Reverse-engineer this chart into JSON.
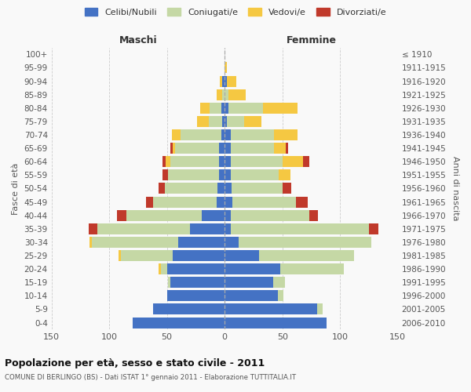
{
  "age_groups": [
    "0-4",
    "5-9",
    "10-14",
    "15-19",
    "20-24",
    "25-29",
    "30-34",
    "35-39",
    "40-44",
    "45-49",
    "50-54",
    "55-59",
    "60-64",
    "65-69",
    "70-74",
    "75-79",
    "80-84",
    "85-89",
    "90-94",
    "95-99",
    "100+"
  ],
  "birth_years": [
    "2006-2010",
    "2001-2005",
    "1996-2000",
    "1991-1995",
    "1986-1990",
    "1981-1985",
    "1976-1980",
    "1971-1975",
    "1966-1970",
    "1961-1965",
    "1956-1960",
    "1951-1955",
    "1946-1950",
    "1941-1945",
    "1936-1940",
    "1931-1935",
    "1926-1930",
    "1921-1925",
    "1916-1920",
    "1911-1915",
    "≤ 1910"
  ],
  "male_celibe": [
    80,
    62,
    50,
    47,
    50,
    45,
    40,
    30,
    20,
    7,
    6,
    5,
    5,
    5,
    3,
    2,
    3,
    0,
    2,
    0,
    0
  ],
  "male_coniugato": [
    0,
    0,
    0,
    2,
    5,
    45,
    75,
    80,
    65,
    55,
    46,
    44,
    42,
    38,
    35,
    12,
    10,
    2,
    0,
    0,
    0
  ],
  "male_vedovo": [
    0,
    0,
    0,
    0,
    2,
    2,
    2,
    0,
    0,
    0,
    0,
    0,
    4,
    2,
    8,
    10,
    8,
    5,
    2,
    0,
    0
  ],
  "male_divorziato": [
    0,
    0,
    0,
    0,
    0,
    0,
    0,
    8,
    8,
    6,
    5,
    5,
    3,
    2,
    0,
    0,
    0,
    0,
    0,
    0,
    0
  ],
  "female_celibe": [
    88,
    80,
    46,
    42,
    48,
    30,
    12,
    5,
    5,
    7,
    6,
    5,
    5,
    5,
    5,
    2,
    3,
    0,
    2,
    0,
    0
  ],
  "female_coniugato": [
    0,
    5,
    5,
    10,
    55,
    82,
    115,
    120,
    68,
    55,
    44,
    42,
    45,
    38,
    38,
    15,
    30,
    3,
    0,
    0,
    0
  ],
  "female_vedovo": [
    0,
    0,
    0,
    0,
    0,
    0,
    0,
    0,
    0,
    0,
    0,
    10,
    18,
    10,
    20,
    15,
    30,
    15,
    8,
    2,
    0
  ],
  "female_divorziato": [
    0,
    0,
    0,
    0,
    0,
    0,
    0,
    8,
    8,
    10,
    8,
    0,
    5,
    2,
    0,
    0,
    0,
    0,
    0,
    0,
    0
  ],
  "color_celibe": "#4472c4",
  "color_coniugato": "#c5d8a5",
  "color_vedovo": "#f5c842",
  "color_divorziato": "#c0392b",
  "title": "Popolazione per età, sesso e stato civile - 2011",
  "subtitle": "COMUNE DI BERLINGO (BS) - Dati ISTAT 1° gennaio 2011 - Elaborazione TUTTITALIA.IT",
  "ylabel_left": "Fasce di età",
  "ylabel_right": "Anni di nascita",
  "xlabel_left": "Maschi",
  "xlabel_right": "Femmine",
  "xlim": 150,
  "background_color": "#f9f9f9",
  "grid_color": "#cccccc"
}
